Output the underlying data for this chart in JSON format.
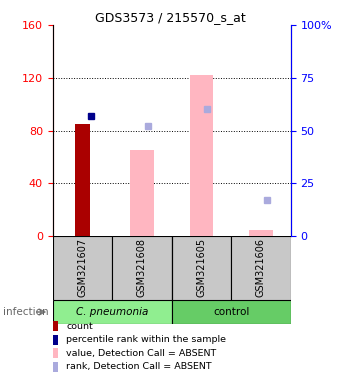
{
  "title": "GDS3573 / 215570_s_at",
  "samples": [
    "GSM321607",
    "GSM321608",
    "GSM321605",
    "GSM321606"
  ],
  "ylim_left": [
    0,
    160
  ],
  "ylim_right": [
    0,
    100
  ],
  "yticks_left": [
    0,
    40,
    80,
    120,
    160
  ],
  "yticks_right": [
    0,
    25,
    50,
    75,
    100
  ],
  "red_bars": [
    85,
    null,
    null,
    null
  ],
  "pink_bars": [
    null,
    65,
    122,
    5
  ],
  "blue_squares_right": [
    57,
    null,
    null,
    null
  ],
  "lightblue_squares_right": [
    null,
    52,
    60,
    17
  ],
  "red_bar_color": "#AA0000",
  "pink_bar_color": "#FFB6C1",
  "blue_sq_color": "#00008B",
  "lightblue_sq_color": "#AAAADD",
  "legend_items": [
    {
      "color": "#AA0000",
      "label": "count"
    },
    {
      "color": "#00008B",
      "label": "percentile rank within the sample"
    },
    {
      "color": "#FFB6C1",
      "label": "value, Detection Call = ABSENT"
    },
    {
      "color": "#AAAADD",
      "label": "rank, Detection Call = ABSENT"
    }
  ],
  "cpneumonia_color": "#90EE90",
  "control_color": "#66CC66",
  "gray_box_color": "#C8C8C8",
  "infection_label": "infection"
}
